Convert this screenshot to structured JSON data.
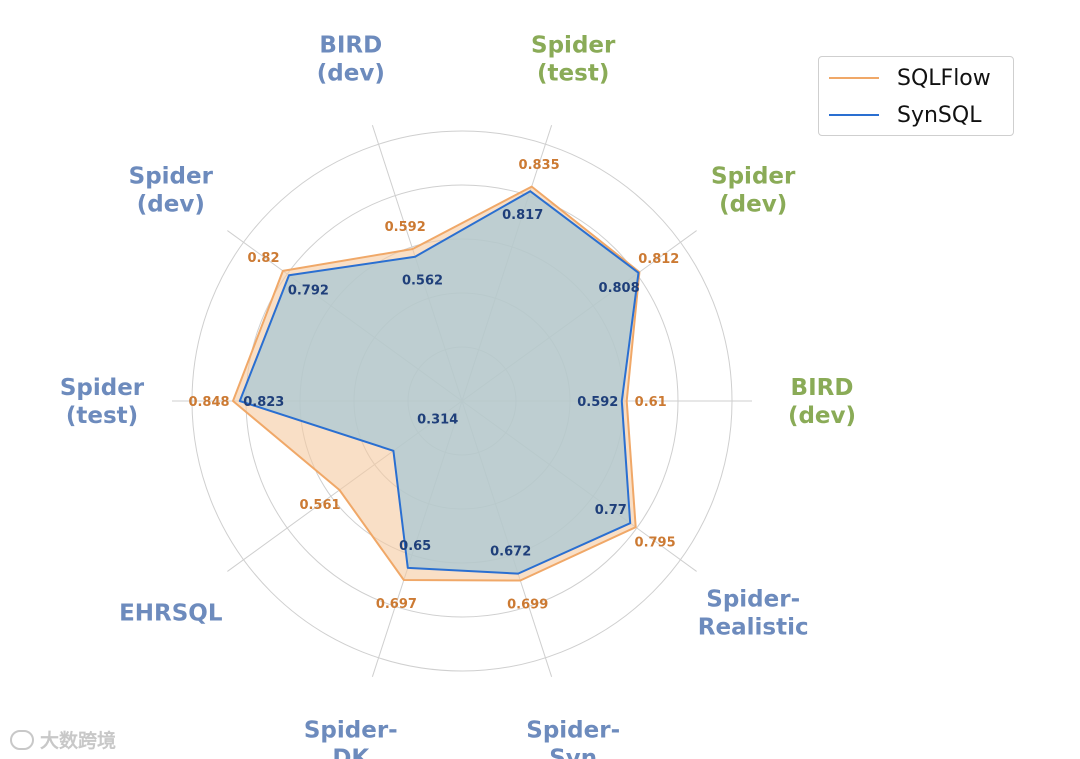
{
  "chart_data": {
    "type": "radar",
    "axes": [
      {
        "label": [
          "Spider",
          "(test)"
        ],
        "color": "#8aab57"
      },
      {
        "label": [
          "Spider",
          "(dev)"
        ],
        "color": "#8aab57"
      },
      {
        "label": [
          "BIRD",
          "(dev)"
        ],
        "color": "#8aab57"
      },
      {
        "label": [
          "Spider-",
          "Realistic"
        ],
        "color": "#6d8bbd"
      },
      {
        "label": [
          "Spider-",
          "Syn"
        ],
        "color": "#6d8bbd"
      },
      {
        "label": [
          "Spider-",
          "DK"
        ],
        "color": "#6d8bbd"
      },
      {
        "label": [
          "EHRSQL"
        ],
        "color": "#6d8bbd"
      },
      {
        "label": [
          "Spider",
          "(test)"
        ],
        "color": "#6d8bbd"
      },
      {
        "label": [
          "Spider",
          "(dev)"
        ],
        "color": "#6d8bbd"
      },
      {
        "label": [
          "BIRD",
          "(dev)"
        ],
        "color": "#6d8bbd"
      }
    ],
    "series": [
      {
        "name": "SQLFlow",
        "values": [
          0.835,
          0.812,
          0.61,
          0.795,
          0.699,
          0.697,
          0.561,
          0.848,
          0.82,
          0.592
        ],
        "labels": [
          "0.835",
          "0.812",
          "0.61",
          "0.795",
          "0.699",
          "0.697",
          "0.561",
          "0.848",
          "0.82",
          "0.592"
        ],
        "color": "#f0a868"
      },
      {
        "name": "SynSQL",
        "values": [
          0.817,
          0.808,
          0.592,
          0.77,
          0.672,
          0.65,
          0.314,
          0.823,
          0.792,
          0.562
        ],
        "labels": [
          "0.817",
          "0.808",
          "0.592",
          "0.77",
          "0.672",
          "0.65",
          "0.314",
          "0.823",
          "0.792",
          "0.562"
        ],
        "color": "#2a6fd1"
      }
    ],
    "rlim": [
      0,
      1
    ],
    "grid": true,
    "legend": "top-right"
  },
  "legend": {
    "items": [
      {
        "label": "SQLFlow",
        "color": "#f0a868"
      },
      {
        "label": "SynSQL",
        "color": "#2a6fd1"
      }
    ]
  },
  "watermark": {
    "text": "大数跨境"
  }
}
